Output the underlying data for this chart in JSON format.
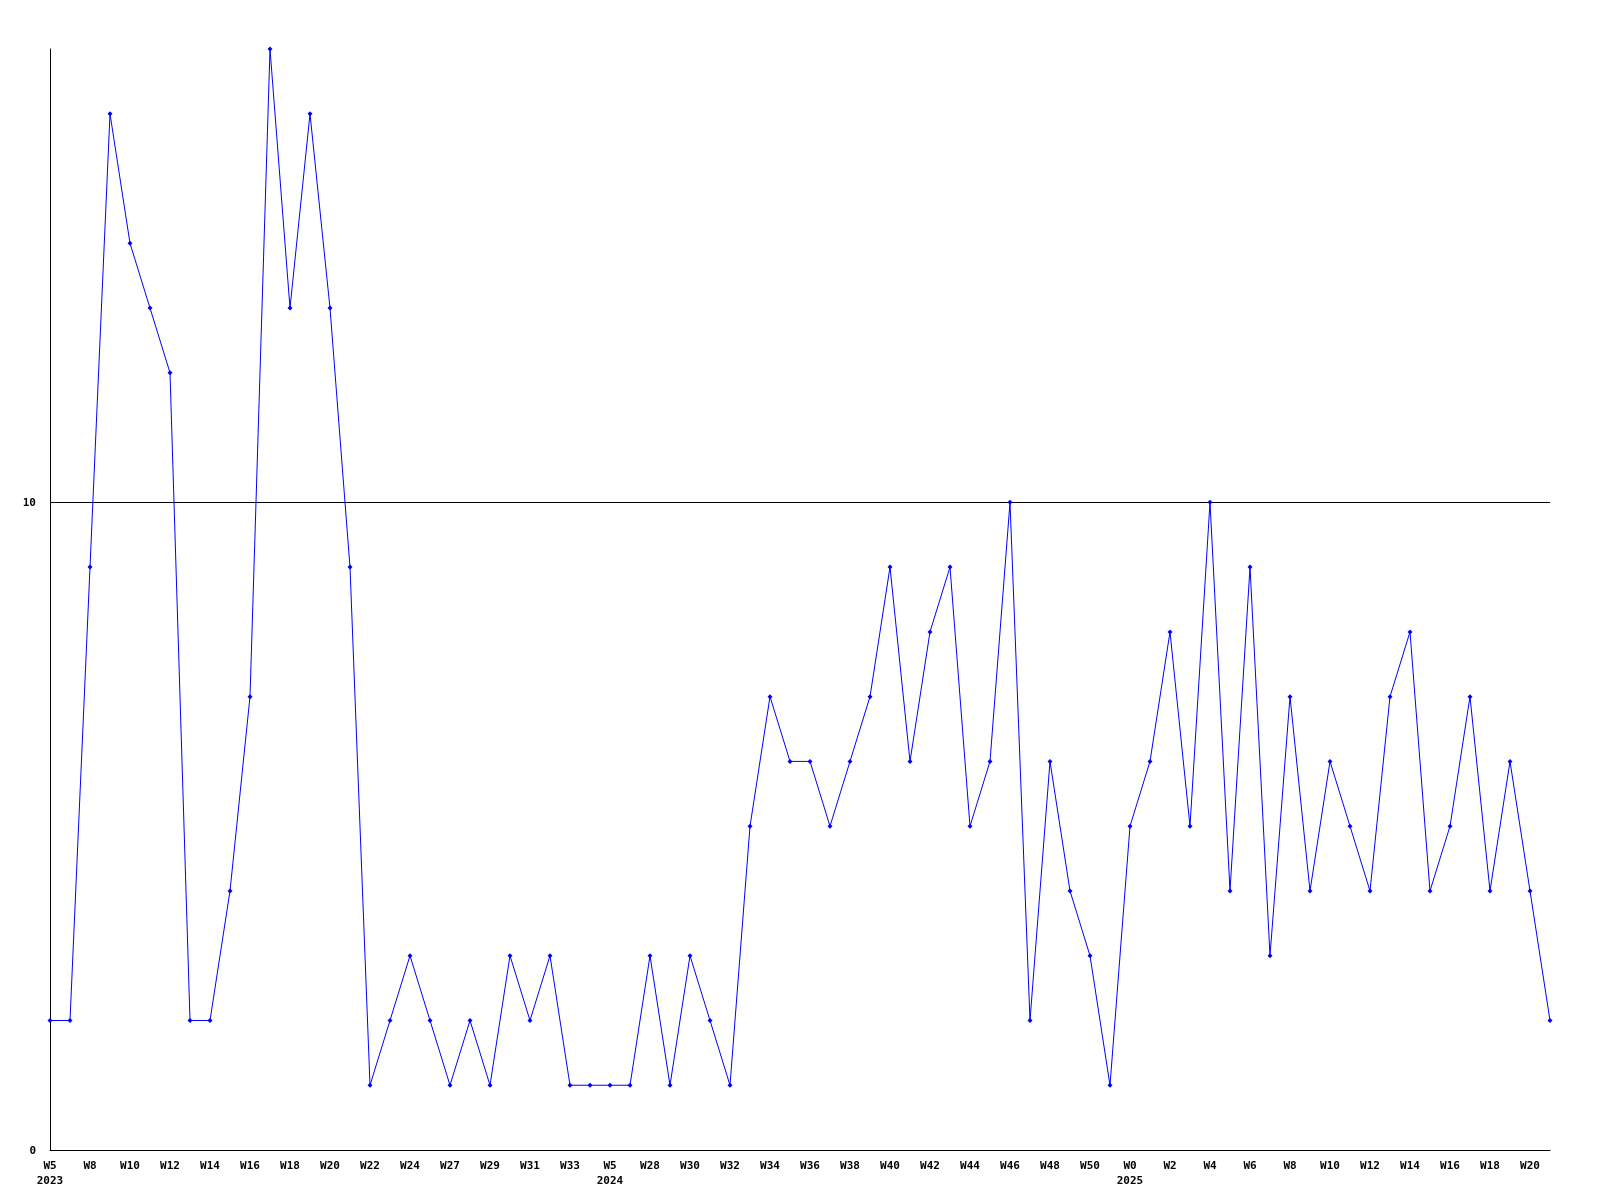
{
  "chart_data": {
    "type": "line",
    "categories": [
      "W5\n2023",
      null,
      "W8",
      null,
      "W10",
      null,
      "W12",
      null,
      "W14",
      null,
      "W16",
      null,
      "W18",
      null,
      "W20",
      null,
      "W22",
      null,
      "W24",
      null,
      "W27",
      null,
      "W29",
      null,
      "W31",
      null,
      "W33",
      null,
      "W5\n2024",
      null,
      "W28",
      null,
      "W30",
      null,
      "W32",
      null,
      "W34",
      null,
      "W36",
      null,
      "W38",
      null,
      "W40",
      null,
      "W42",
      null,
      "W44",
      null,
      "W46",
      null,
      "W48",
      null,
      "W50",
      null,
      "W0\n2025",
      null,
      "W2",
      null,
      "W4",
      null,
      "W6",
      null,
      "W8",
      null,
      "W10",
      null,
      "W12",
      null,
      "W14",
      null,
      "W16",
      null,
      "W18",
      null,
      "W20",
      null
    ],
    "series": [
      {
        "color": "#0000ff",
        "values": [
          2,
          2,
          9,
          16,
          14,
          13,
          12,
          2,
          2,
          4,
          7,
          17,
          13,
          16,
          13,
          9,
          1,
          2,
          3,
          2,
          1,
          2,
          1,
          3,
          2,
          3,
          1,
          1,
          1,
          1,
          3,
          1,
          3,
          2,
          1,
          5,
          7,
          6,
          6,
          5,
          6,
          7,
          9,
          6,
          8,
          9,
          5,
          6,
          10,
          2,
          6,
          4,
          3,
          1,
          5,
          6,
          8,
          5,
          10,
          4,
          9,
          3,
          7,
          4,
          6,
          5,
          4,
          7,
          8,
          4,
          5,
          7,
          4,
          6,
          4,
          2
        ]
      }
    ],
    "ylim": [
      0,
      17
    ],
    "yticks": [
      0,
      10
    ],
    "grid": "y",
    "marker": "diamond",
    "line_style": "solid"
  }
}
